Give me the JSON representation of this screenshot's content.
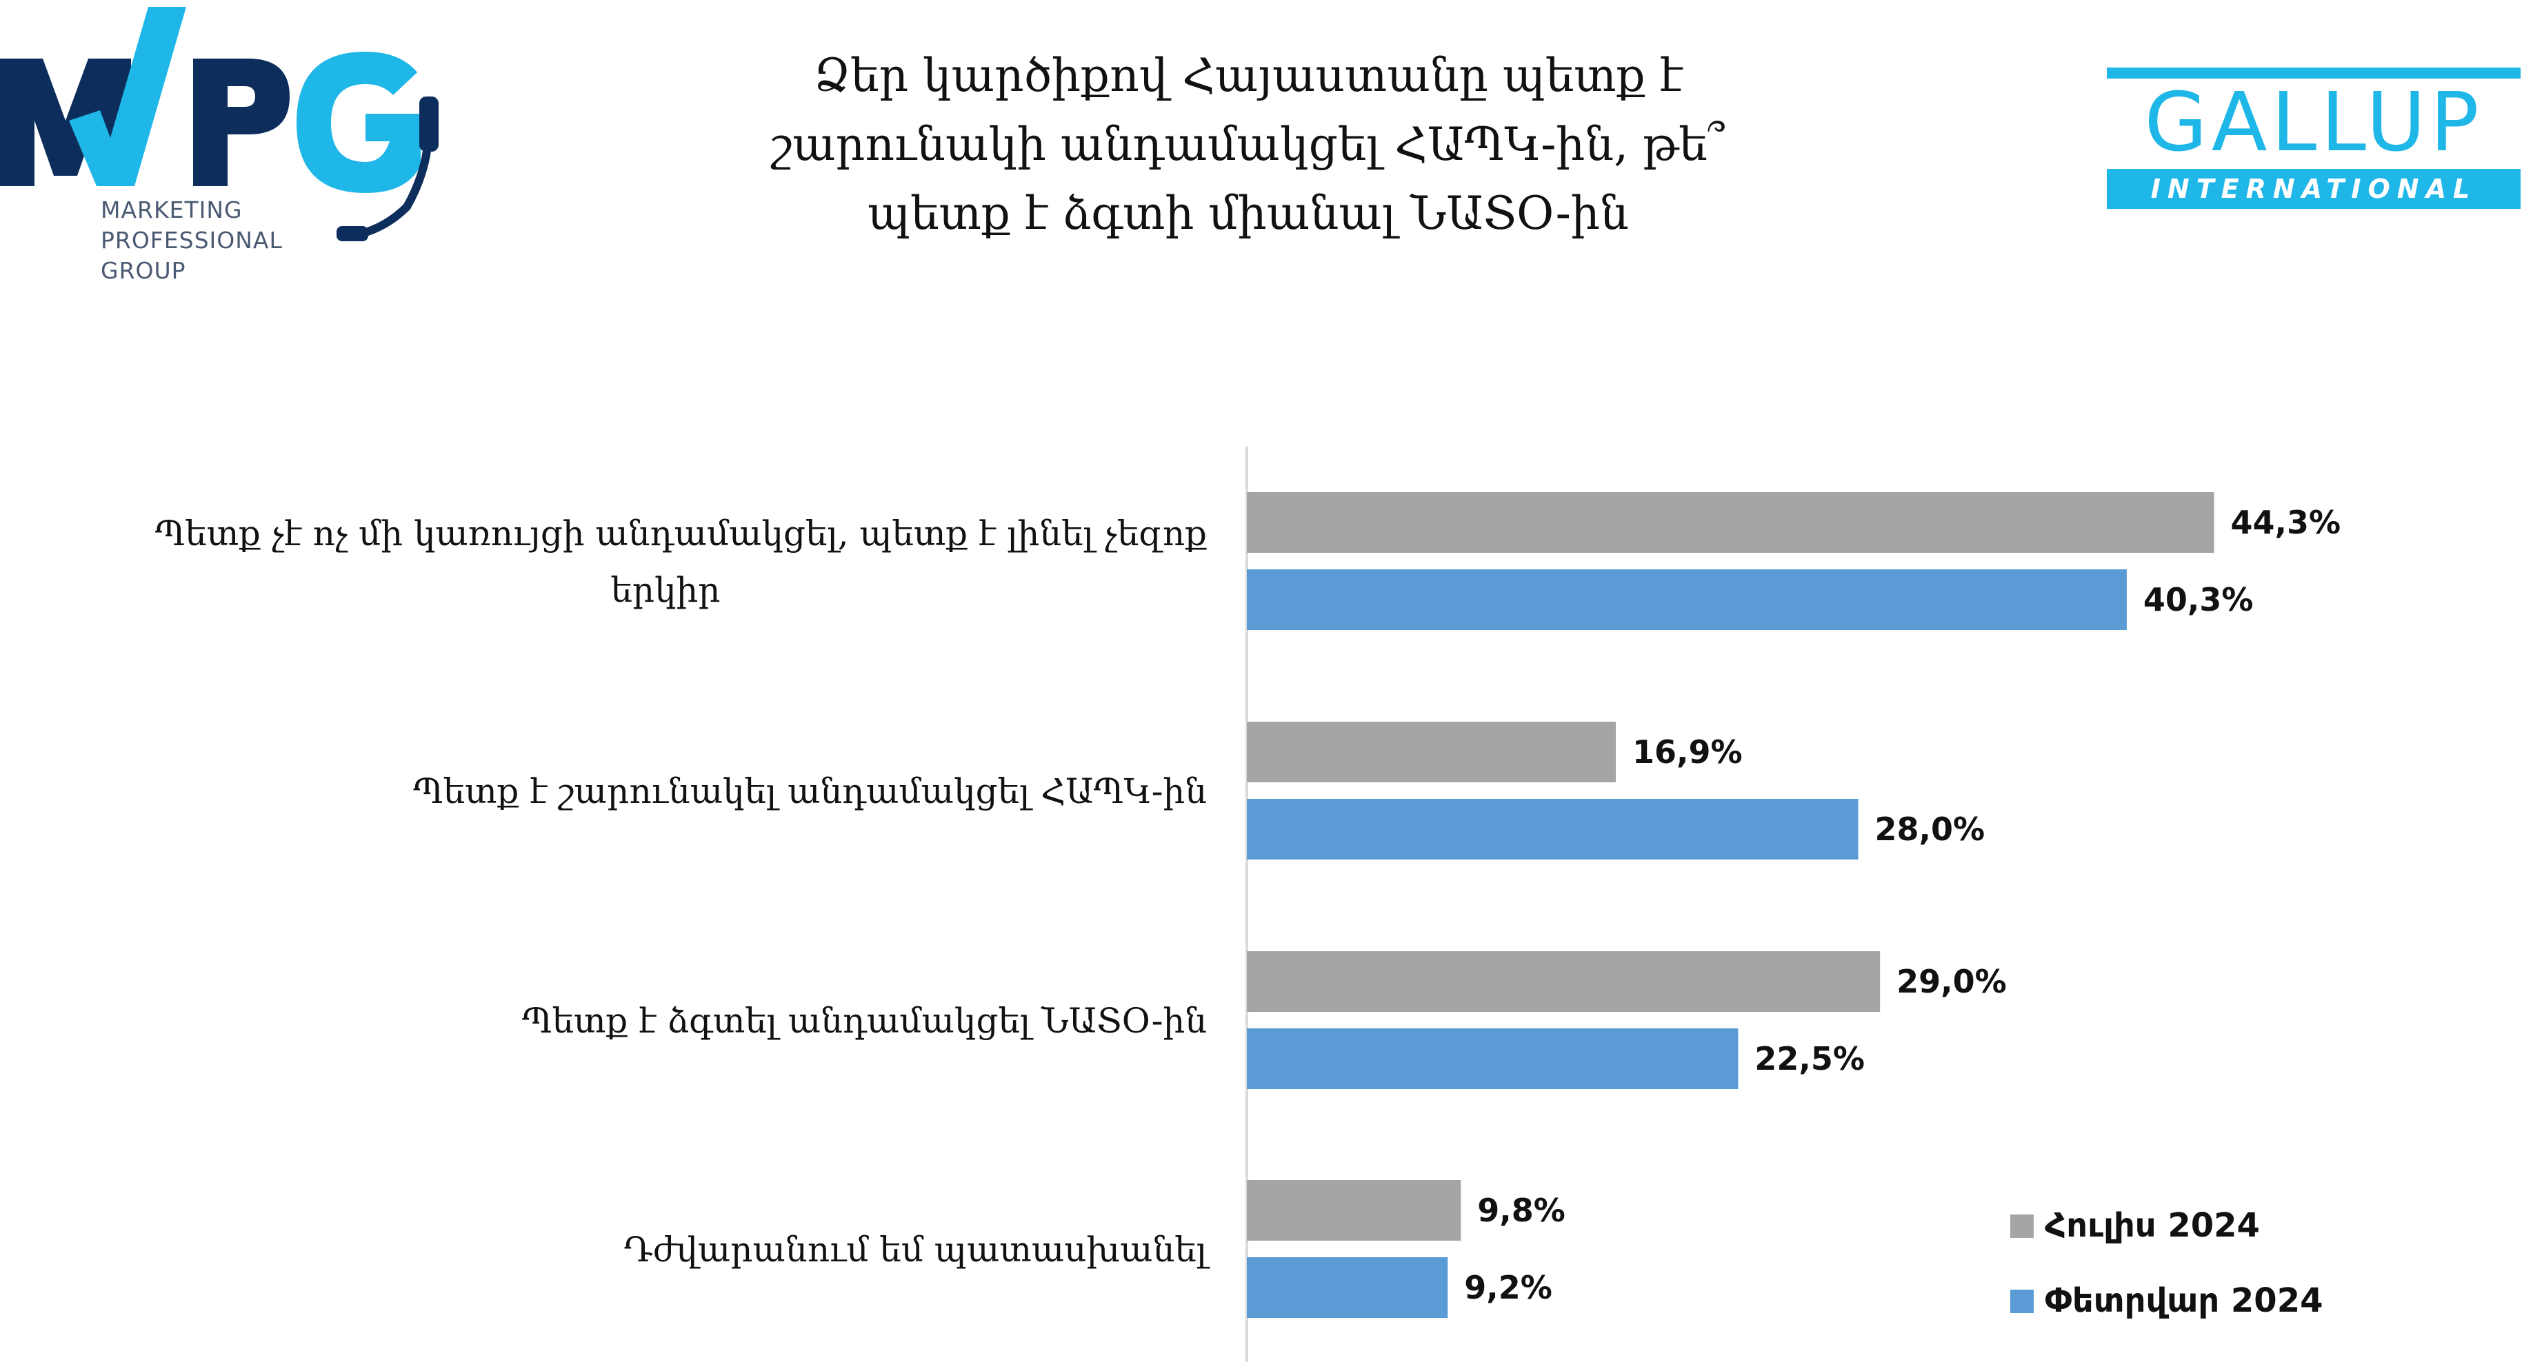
{
  "header": {
    "mpg_logo_text": "MPG",
    "mpg_subtitle": [
      "MARKETING",
      "PROFESSIONAL",
      "GROUP"
    ],
    "gallup_name": "GALLUP",
    "gallup_subtitle": "INTERNATIONAL",
    "title_lines": [
      "Ձեր կարծիքով Հայաստանը պետք է",
      "շարունակի անդամակցել ՀԱՊԿ-ին, թե՞",
      "պետք է ձգտի միանալ ՆԱՏO-ին"
    ]
  },
  "colors": {
    "series_july": "#a5a5a5",
    "series_february": "#5b9bd5",
    "mpg_navy": "#0d2d5c",
    "mpg_cyan": "#1fb6e8",
    "gallup_cyan": "#1fb6e8",
    "axis": "#d9d9d9"
  },
  "chart_data": {
    "type": "bar",
    "orientation": "horizontal",
    "title": "Ձեր կարծիքով Հայաստանը պետք է շարունակի անդամակցել ՀԱՊԿ-ին, թե՞ պետք է ձգտի միանալ ՆԱՏO-ին",
    "categories": [
      [
        "Պետք չէ ոչ մի կառույցի անդամակցել, պետք է լինել չեզոք",
        "երկիր"
      ],
      [
        "Պետք է շարունակել անդամակցել ՀԱՊԿ-ին"
      ],
      [
        "Պետք է ձգտել անդամակցել ՆԱՏO-ին"
      ],
      [
        "Դժվարանում եմ պատասխանել"
      ]
    ],
    "series": [
      {
        "name": "Հուլիս 2024",
        "values": [
          44.3,
          16.9,
          29.0,
          9.8
        ],
        "labels": [
          "44,3%",
          "16,9%",
          "29,0%",
          "9,8%"
        ]
      },
      {
        "name": "Փետրվար 2024",
        "values": [
          40.3,
          28.0,
          22.5,
          9.2
        ],
        "labels": [
          "40,3%",
          "28,0%",
          "22,5%",
          "9,2%"
        ]
      }
    ],
    "xlim": [
      0,
      100
    ],
    "xlabel": "",
    "ylabel": "",
    "grid": false,
    "legend_position": "bottom-right"
  }
}
